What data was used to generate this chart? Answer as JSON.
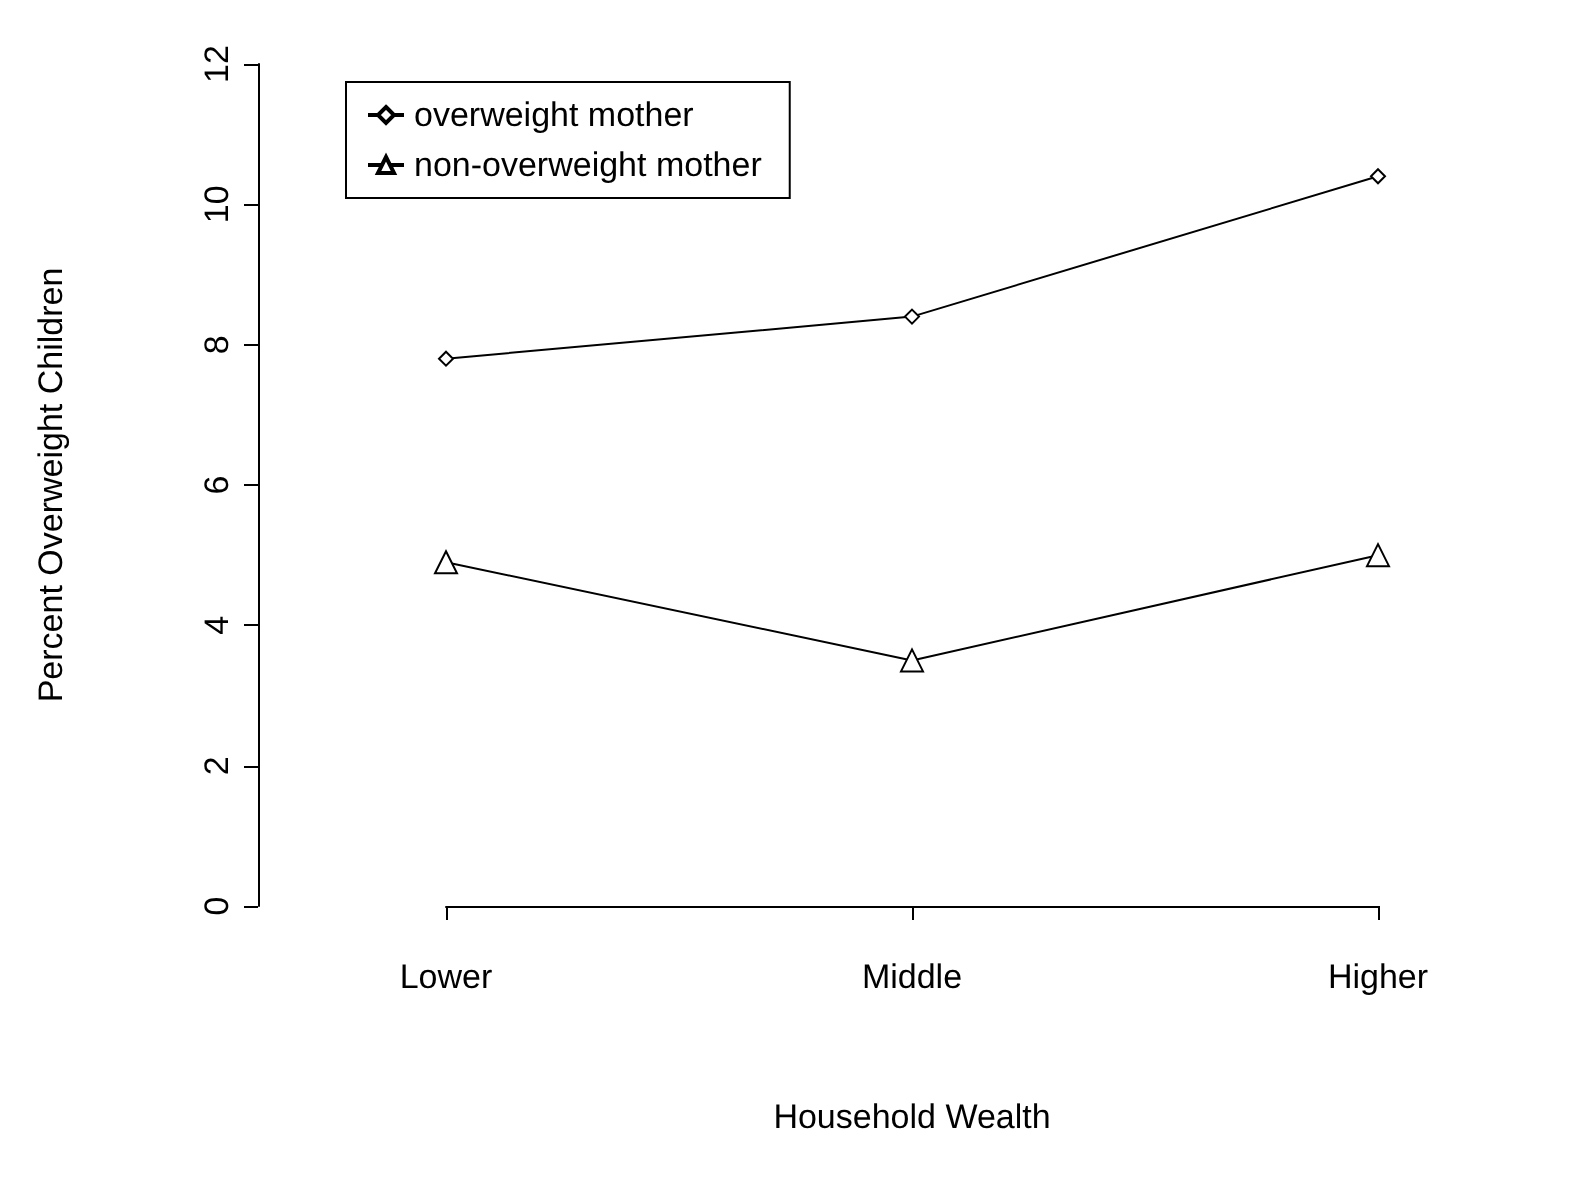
{
  "chart_data": {
    "type": "line",
    "xlabel": "Household Wealth",
    "ylabel": "Percent Overweight Children",
    "categories": [
      "Lower",
      "Middle",
      "Higher"
    ],
    "ylim": [
      0,
      12
    ],
    "yticks": [
      0,
      2,
      4,
      6,
      8,
      10,
      12
    ],
    "grid": false,
    "legend": "top left",
    "series": [
      {
        "name": "overweight mother",
        "color": "#000000",
        "marker": "diamond",
        "values": [
          7.8,
          8.4,
          10.4
        ]
      },
      {
        "name": "non-overweight mother",
        "color": "#000000",
        "marker": "triangle",
        "values": [
          4.9,
          3.5,
          5.0
        ]
      }
    ]
  }
}
